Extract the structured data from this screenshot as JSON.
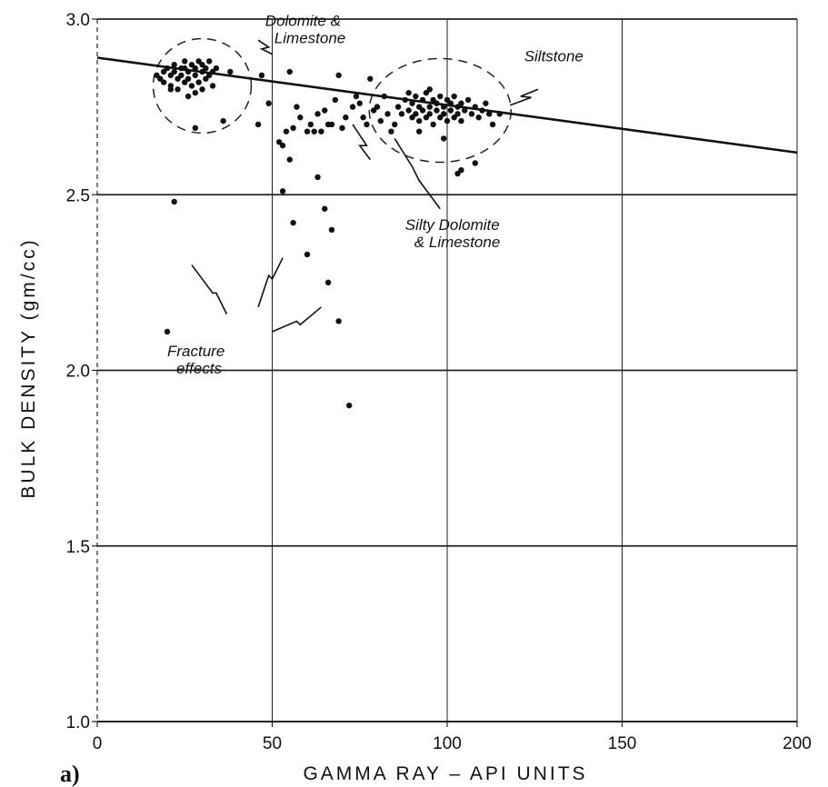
{
  "chart_data": {
    "type": "scatter",
    "title": "",
    "panel_label": "a)",
    "xlabel": "GAMMA RAY – API UNITS",
    "ylabel": "BULK DENSITY (gm/cc)",
    "xlim": [
      0,
      200
    ],
    "ylim": [
      1.0,
      3.0
    ],
    "x_ticks": [
      "0",
      "50",
      "100",
      "150",
      "200"
    ],
    "y_ticks": [
      "1.0",
      "1.5",
      "2.0",
      "2.5",
      "3.0"
    ],
    "grid": true,
    "trend_line": {
      "x": [
        0,
        200
      ],
      "y": [
        2.89,
        2.62
      ]
    },
    "annotations": [
      {
        "lines": [
          "Dolomite &",
          "Limestone"
        ],
        "x": 48,
        "y": 2.98
      },
      {
        "lines": [
          "Siltstone"
        ],
        "x": 122,
        "y": 2.88
      },
      {
        "lines": [
          "Silty Dolomite",
          "& Limestone"
        ],
        "x": 88,
        "y": 2.4
      },
      {
        "lines": [
          "Fracture",
          "effects"
        ],
        "x": 20,
        "y": 2.04
      }
    ],
    "series": [
      {
        "points": [
          [
            17,
            2.84
          ],
          [
            18,
            2.83
          ],
          [
            19,
            2.85
          ],
          [
            19,
            2.82
          ],
          [
            20,
            2.86
          ],
          [
            21,
            2.84
          ],
          [
            21,
            2.81
          ],
          [
            22,
            2.87
          ],
          [
            22,
            2.85
          ],
          [
            23,
            2.83
          ],
          [
            23,
            2.8
          ],
          [
            24,
            2.86
          ],
          [
            24,
            2.84
          ],
          [
            25,
            2.88
          ],
          [
            25,
            2.82
          ],
          [
            26,
            2.85
          ],
          [
            26,
            2.83
          ],
          [
            27,
            2.87
          ],
          [
            27,
            2.81
          ],
          [
            28,
            2.86
          ],
          [
            28,
            2.84
          ],
          [
            29,
            2.88
          ],
          [
            29,
            2.82
          ],
          [
            30,
            2.85
          ],
          [
            30,
            2.87
          ],
          [
            31,
            2.83
          ],
          [
            31,
            2.86
          ],
          [
            32,
            2.84
          ],
          [
            32,
            2.88
          ],
          [
            33,
            2.85
          ],
          [
            33,
            2.81
          ],
          [
            34,
            2.86
          ],
          [
            28,
            2.79
          ],
          [
            30,
            2.8
          ],
          [
            26,
            2.78
          ],
          [
            38,
            2.85
          ],
          [
            21,
            2.8
          ],
          [
            25,
            2.86
          ],
          [
            28,
            2.69
          ],
          [
            36,
            2.71
          ],
          [
            47,
            2.84
          ],
          [
            55,
            2.85
          ],
          [
            46,
            2.7
          ],
          [
            49,
            2.76
          ],
          [
            52,
            2.65
          ],
          [
            53,
            2.64
          ],
          [
            54,
            2.68
          ],
          [
            55,
            2.6
          ],
          [
            56,
            2.69
          ],
          [
            57,
            2.75
          ],
          [
            58,
            2.72
          ],
          [
            60,
            2.68
          ],
          [
            61,
            2.7
          ],
          [
            62,
            2.68
          ],
          [
            63,
            2.73
          ],
          [
            64,
            2.68
          ],
          [
            65,
            2.74
          ],
          [
            66,
            2.7
          ],
          [
            67,
            2.7
          ],
          [
            68,
            2.77
          ],
          [
            69,
            2.84
          ],
          [
            70,
            2.69
          ],
          [
            71,
            2.72
          ],
          [
            73,
            2.75
          ],
          [
            74,
            2.78
          ],
          [
            75,
            2.76
          ],
          [
            76,
            2.72
          ],
          [
            77,
            2.7
          ],
          [
            78,
            2.83
          ],
          [
            79,
            2.74
          ],
          [
            80,
            2.75
          ],
          [
            81,
            2.71
          ],
          [
            82,
            2.78
          ],
          [
            83,
            2.73
          ],
          [
            84,
            2.68
          ],
          [
            85,
            2.7
          ],
          [
            53,
            2.51
          ],
          [
            56,
            2.42
          ],
          [
            60,
            2.33
          ],
          [
            63,
            2.55
          ],
          [
            65,
            2.46
          ],
          [
            66,
            2.25
          ],
          [
            67,
            2.4
          ],
          [
            69,
            2.14
          ],
          [
            72,
            1.9
          ],
          [
            20,
            2.11
          ],
          [
            22,
            2.48
          ],
          [
            86,
            2.75
          ],
          [
            87,
            2.73
          ],
          [
            88,
            2.77
          ],
          [
            89,
            2.74
          ],
          [
            89,
            2.79
          ],
          [
            90,
            2.72
          ],
          [
            90,
            2.76
          ],
          [
            91,
            2.78
          ],
          [
            91,
            2.73
          ],
          [
            92,
            2.75
          ],
          [
            92,
            2.71
          ],
          [
            93,
            2.77
          ],
          [
            93,
            2.74
          ],
          [
            94,
            2.72
          ],
          [
            94,
            2.79
          ],
          [
            95,
            2.75
          ],
          [
            95,
            2.73
          ],
          [
            96,
            2.77
          ],
          [
            96,
            2.7
          ],
          [
            97,
            2.74
          ],
          [
            97,
            2.76
          ],
          [
            98,
            2.72
          ],
          [
            98,
            2.78
          ],
          [
            99,
            2.75
          ],
          [
            99,
            2.73
          ],
          [
            100,
            2.77
          ],
          [
            100,
            2.71
          ],
          [
            101,
            2.74
          ],
          [
            101,
            2.76
          ],
          [
            102,
            2.72
          ],
          [
            102,
            2.78
          ],
          [
            103,
            2.75
          ],
          [
            103,
            2.73
          ],
          [
            104,
            2.76
          ],
          [
            104,
            2.71
          ],
          [
            105,
            2.74
          ],
          [
            106,
            2.77
          ],
          [
            107,
            2.73
          ],
          [
            108,
            2.75
          ],
          [
            109,
            2.72
          ],
          [
            110,
            2.74
          ],
          [
            111,
            2.76
          ],
          [
            112,
            2.73
          ],
          [
            113,
            2.7
          ],
          [
            115,
            2.73
          ],
          [
            95,
            2.8
          ],
          [
            92,
            2.68
          ],
          [
            99,
            2.66
          ],
          [
            103,
            2.56
          ],
          [
            104,
            2.57
          ],
          [
            108,
            2.59
          ]
        ]
      }
    ]
  }
}
